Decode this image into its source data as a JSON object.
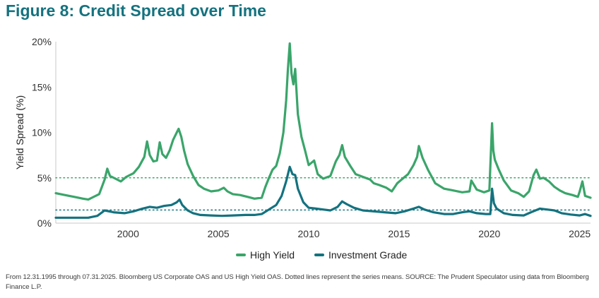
{
  "chart_data": {
    "type": "line",
    "title": "Figure 8: Credit Spread over Time",
    "xlabel": "",
    "ylabel": "Yield Spread (%)",
    "xlim": [
      1996.0,
      2025.6
    ],
    "ylim": [
      0,
      20
    ],
    "x_ticks": [
      2000,
      2005,
      2010,
      2015,
      2020,
      2025
    ],
    "x_tick_labels": [
      "2000",
      "2005",
      "2010",
      "2015",
      "2020",
      "2025"
    ],
    "y_ticks": [
      0,
      5,
      10,
      15,
      20
    ],
    "y_tick_labels": [
      "0%",
      "5%",
      "10%",
      "15%",
      "20%"
    ],
    "grid": false,
    "legend_position": "bottom-center",
    "series": [
      {
        "name": "High Yield",
        "color": "#3aa56a",
        "mean": 5.0,
        "x": [
          1996.0,
          1996.5,
          1997.0,
          1997.5,
          1997.8,
          1998.0,
          1998.4,
          1998.7,
          1998.85,
          1999.0,
          1999.3,
          1999.6,
          1999.9,
          2000.3,
          2000.6,
          2000.9,
          2001.05,
          2001.2,
          2001.4,
          2001.6,
          2001.75,
          2001.9,
          2002.1,
          2002.3,
          2002.5,
          2002.7,
          2002.8,
          2002.95,
          2003.1,
          2003.3,
          2003.6,
          2003.9,
          2004.2,
          2004.6,
          2005.0,
          2005.3,
          2005.5,
          2005.8,
          2006.2,
          2006.6,
          2007.0,
          2007.4,
          2007.6,
          2007.8,
          2008.0,
          2008.2,
          2008.4,
          2008.6,
          2008.75,
          2008.85,
          2008.95,
          2009.05,
          2009.15,
          2009.25,
          2009.4,
          2009.6,
          2009.8,
          2010.0,
          2010.3,
          2010.5,
          2010.8,
          2011.2,
          2011.5,
          2011.7,
          2011.85,
          2012.0,
          2012.3,
          2012.6,
          2013.0,
          2013.4,
          2013.6,
          2013.9,
          2014.3,
          2014.6,
          2014.9,
          2015.2,
          2015.5,
          2015.8,
          2016.0,
          2016.1,
          2016.3,
          2016.6,
          2017.0,
          2017.5,
          2018.0,
          2018.5,
          2018.9,
          2019.0,
          2019.3,
          2019.7,
          2020.0,
          2020.15,
          2020.22,
          2020.3,
          2020.5,
          2020.8,
          2021.2,
          2021.6,
          2021.9,
          2022.2,
          2022.45,
          2022.6,
          2022.8,
          2023.0,
          2023.3,
          2023.6,
          2023.9,
          2024.2,
          2024.6,
          2024.9,
          2025.0,
          2025.15,
          2025.3,
          2025.6
        ],
        "values": [
          3.3,
          3.1,
          2.9,
          2.7,
          2.6,
          2.8,
          3.2,
          4.8,
          6.0,
          5.2,
          4.9,
          4.6,
          5.1,
          5.5,
          6.2,
          7.3,
          9.0,
          7.5,
          6.8,
          6.9,
          8.9,
          7.6,
          7.2,
          8.0,
          9.2,
          10.0,
          10.4,
          9.5,
          8.0,
          6.5,
          5.2,
          4.2,
          3.8,
          3.5,
          3.6,
          3.9,
          3.5,
          3.2,
          3.1,
          2.9,
          2.7,
          2.8,
          4.0,
          5.0,
          5.9,
          6.3,
          7.7,
          10.0,
          13.5,
          17.0,
          19.8,
          16.5,
          15.3,
          17.0,
          12.0,
          9.5,
          8.0,
          6.4,
          6.9,
          5.4,
          4.9,
          5.2,
          6.8,
          7.5,
          8.6,
          7.3,
          6.3,
          5.4,
          5.1,
          4.8,
          4.4,
          4.2,
          3.9,
          3.5,
          4.4,
          4.9,
          5.4,
          6.4,
          7.3,
          8.5,
          7.2,
          5.9,
          4.4,
          3.8,
          3.6,
          3.4,
          3.5,
          4.7,
          3.7,
          3.4,
          3.6,
          11.0,
          8.0,
          7.0,
          6.0,
          4.7,
          3.6,
          3.3,
          2.9,
          3.5,
          5.3,
          5.9,
          4.9,
          5.0,
          4.6,
          4.0,
          3.6,
          3.3,
          3.1,
          2.9,
          3.5,
          4.6,
          3.0,
          2.8
        ]
      },
      {
        "name": "Investment Grade",
        "color": "#14727f",
        "mean": 1.45,
        "x": [
          1996.0,
          1997.0,
          1997.8,
          1998.3,
          1998.7,
          1999.2,
          1999.8,
          2000.3,
          2000.8,
          2001.2,
          2001.6,
          2002.0,
          2002.4,
          2002.7,
          2002.85,
          2003.0,
          2003.3,
          2003.6,
          2004.0,
          2004.6,
          2005.2,
          2005.8,
          2006.5,
          2007.0,
          2007.4,
          2007.8,
          2008.2,
          2008.5,
          2008.75,
          2008.95,
          2009.1,
          2009.25,
          2009.4,
          2009.7,
          2010.0,
          2010.4,
          2010.8,
          2011.2,
          2011.6,
          2011.85,
          2012.1,
          2012.5,
          2013.0,
          2013.6,
          2014.2,
          2014.8,
          2015.3,
          2015.8,
          2016.1,
          2016.4,
          2016.9,
          2017.5,
          2018.0,
          2018.5,
          2018.9,
          2019.3,
          2019.8,
          2020.05,
          2020.15,
          2020.25,
          2020.4,
          2020.8,
          2021.3,
          2021.9,
          2022.3,
          2022.8,
          2023.2,
          2023.6,
          2024.0,
          2024.5,
          2025.0,
          2025.3,
          2025.6
        ],
        "values": [
          0.6,
          0.6,
          0.6,
          0.8,
          1.4,
          1.2,
          1.1,
          1.3,
          1.6,
          1.8,
          1.7,
          1.9,
          2.0,
          2.3,
          2.6,
          2.0,
          1.4,
          1.1,
          0.9,
          0.85,
          0.8,
          0.85,
          0.9,
          0.9,
          1.0,
          1.5,
          2.0,
          3.0,
          4.6,
          6.2,
          5.4,
          5.3,
          3.8,
          2.3,
          1.7,
          1.6,
          1.5,
          1.4,
          1.8,
          2.4,
          2.1,
          1.7,
          1.4,
          1.3,
          1.2,
          1.1,
          1.3,
          1.6,
          1.8,
          1.5,
          1.2,
          1.0,
          1.0,
          1.2,
          1.3,
          1.1,
          1.0,
          1.0,
          3.8,
          2.2,
          1.6,
          1.1,
          0.9,
          0.85,
          1.2,
          1.6,
          1.5,
          1.4,
          1.1,
          0.95,
          0.85,
          1.0,
          0.8
        ]
      }
    ]
  },
  "legend": {
    "high_yield": "High Yield",
    "investment_grade": "Investment Grade"
  },
  "footnote": "From 12.31.1995 through 07.31.2025. Bloomberg US Corporate OAS and US High Yield OAS. Dotted lines represent the series means. SOURCE: The Prudent Speculator using data from Bloomberg Finance L.P."
}
